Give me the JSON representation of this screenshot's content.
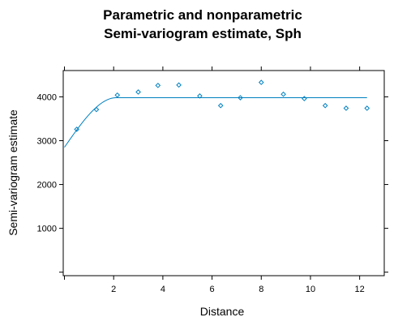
{
  "chart_data": {
    "type": "scatter",
    "title_lines": [
      "Parametric and nonparametric",
      "Semi-variogram estimate, Sph"
    ],
    "xlabel": "Distance",
    "ylabel": "Semi-variogram estimate",
    "xlim": [
      -0.05,
      13.0
    ],
    "ylim": [
      -80,
      4600
    ],
    "x_ticks": [
      2,
      4,
      6,
      8,
      10,
      12
    ],
    "y_ticks": [
      1000,
      2000,
      3000,
      4000
    ],
    "grid": false,
    "color": "#0080c0",
    "series": [
      {
        "kind": "points",
        "x": [
          0.5,
          1.3,
          2.15,
          3.0,
          3.8,
          4.65,
          5.5,
          6.35,
          7.15,
          8.0,
          8.9,
          9.75,
          10.6,
          11.45,
          12.3
        ],
        "y": [
          3260,
          3710,
          4040,
          4110,
          4260,
          4270,
          4020,
          3800,
          3980,
          4330,
          4060,
          3960,
          3800,
          3740,
          3740
        ]
      },
      {
        "kind": "line",
        "model": "spherical",
        "nugget": 2850,
        "sill": 3980,
        "range": 2.1,
        "x_extent": [
          0.0,
          12.3
        ]
      }
    ]
  }
}
